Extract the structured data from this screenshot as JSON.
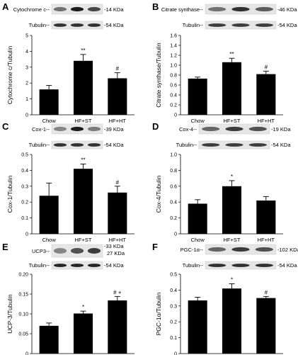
{
  "panels": [
    {
      "id": "A",
      "label": "A",
      "protein": "Cytochrome c",
      "protein_kda": "14 KDa",
      "loading": "Tubulin",
      "loading_kda": "54 KDa"
    },
    {
      "id": "B",
      "label": "B",
      "protein": "Citrate synthase",
      "protein_kda": "46 KDa",
      "loading": "Tubulin",
      "loading_kda": "54 KDa"
    },
    {
      "id": "C",
      "label": "C",
      "protein": "Cox-1",
      "protein_kda": "39 KDa",
      "loading": "Tubulin",
      "loading_kda": "54 KDa"
    },
    {
      "id": "D",
      "label": "D",
      "protein": "Cox-4",
      "protein_kda": "19 KDa",
      "loading": "Tubulin",
      "loading_kda": "54 KDa"
    },
    {
      "id": "E",
      "label": "E",
      "protein": "UCP3",
      "protein_kda": "33 KDa",
      "protein_kda2": "27 KDa",
      "loading": "Tubulin",
      "loading_kda": "54 KDa"
    },
    {
      "id": "F",
      "label": "F",
      "protein": "PGC-1α",
      "protein_kda": "102 KDa",
      "loading": "Tubulin",
      "loading_kda": "54 KDa"
    }
  ],
  "chart_data": [
    {
      "panel": "A",
      "type": "bar",
      "categories": [
        "Chow",
        "HF+ST",
        "HF+HT"
      ],
      "values": [
        1.6,
        3.4,
        2.3
      ],
      "errors": [
        0.25,
        0.4,
        0.35
      ],
      "significance": [
        "",
        "**",
        "#"
      ],
      "ylabel": "Cytochrome c/Tubulin",
      "ylim": [
        0,
        5
      ],
      "yticks": [
        0,
        1,
        2,
        3,
        4,
        5
      ],
      "tick_labels": [
        "0",
        "1",
        "2",
        "3",
        "4",
        "5"
      ]
    },
    {
      "panel": "B",
      "type": "bar",
      "categories": [
        "Chow",
        "HF+ST",
        "HF+HT"
      ],
      "values": [
        0.73,
        1.06,
        0.82
      ],
      "errors": [
        0.03,
        0.08,
        0.06
      ],
      "significance": [
        "",
        "**",
        "#"
      ],
      "ylabel": "Citrate synthase/Tubulin",
      "ylim": [
        0,
        1.6
      ],
      "yticks": [
        0,
        0.2,
        0.4,
        0.6,
        0.8,
        1.0,
        1.2,
        1.4,
        1.6
      ],
      "tick_labels": [
        "0",
        "0.2",
        "0.4",
        "0.6",
        "0.8",
        "1.0",
        "1.2",
        "1.4",
        "1.6"
      ]
    },
    {
      "panel": "C",
      "type": "bar",
      "categories": [
        "Chow",
        "HF+ST",
        "HF+HT"
      ],
      "values": [
        0.24,
        0.41,
        0.26
      ],
      "errors": [
        0.08,
        0.03,
        0.04
      ],
      "significance": [
        "",
        "**",
        "#"
      ],
      "ylabel": "Cox-1/Tubulin",
      "ylim": [
        0,
        0.5
      ],
      "yticks": [
        0,
        0.1,
        0.2,
        0.3,
        0.4,
        0.5
      ],
      "tick_labels": [
        "0",
        "0.1",
        "0.2",
        "0.3",
        "0.4",
        "0.5"
      ]
    },
    {
      "panel": "D",
      "type": "bar",
      "categories": [
        "Chow",
        "HF+ST",
        "HF+HT"
      ],
      "values": [
        0.38,
        0.6,
        0.42
      ],
      "errors": [
        0.05,
        0.07,
        0.05
      ],
      "significance": [
        "",
        "*",
        ""
      ],
      "ylabel": "Cox-4/Tubulin",
      "ylim": [
        0,
        1.0
      ],
      "yticks": [
        0,
        0.2,
        0.4,
        0.6,
        0.8,
        1.0
      ],
      "tick_labels": [
        "0",
        "0.2",
        "0.4",
        "0.6",
        "0.8",
        "1.0"
      ]
    },
    {
      "panel": "E",
      "type": "bar",
      "categories": [
        "Chow",
        "HF+ST",
        "HF+HT"
      ],
      "values": [
        0.07,
        0.101,
        0.134
      ],
      "errors": [
        0.007,
        0.006,
        0.01
      ],
      "significance": [
        "",
        "*",
        "# +"
      ],
      "ylabel": "UCP-3/Tubulin",
      "ylim": [
        0,
        0.2
      ],
      "yticks": [
        0,
        0.05,
        0.1,
        0.15,
        0.2
      ],
      "tick_labels": [
        "0",
        "0.05",
        "0.10",
        "0.15",
        "0.20"
      ]
    },
    {
      "panel": "F",
      "type": "bar",
      "categories": [
        "Chow",
        "HF+ST",
        "HF+HT"
      ],
      "values": [
        0.335,
        0.41,
        0.35
      ],
      "errors": [
        0.02,
        0.03,
        0.01
      ],
      "significance": [
        "",
        "*",
        "#"
      ],
      "ylabel": "PGC-1α/Tubulin",
      "ylim": [
        0,
        0.5
      ],
      "yticks": [
        0,
        0.1,
        0.2,
        0.3,
        0.4,
        0.5
      ],
      "tick_labels": [
        "0",
        "0.1",
        "0.2",
        "0.3",
        "0.4",
        "0.5"
      ]
    }
  ]
}
